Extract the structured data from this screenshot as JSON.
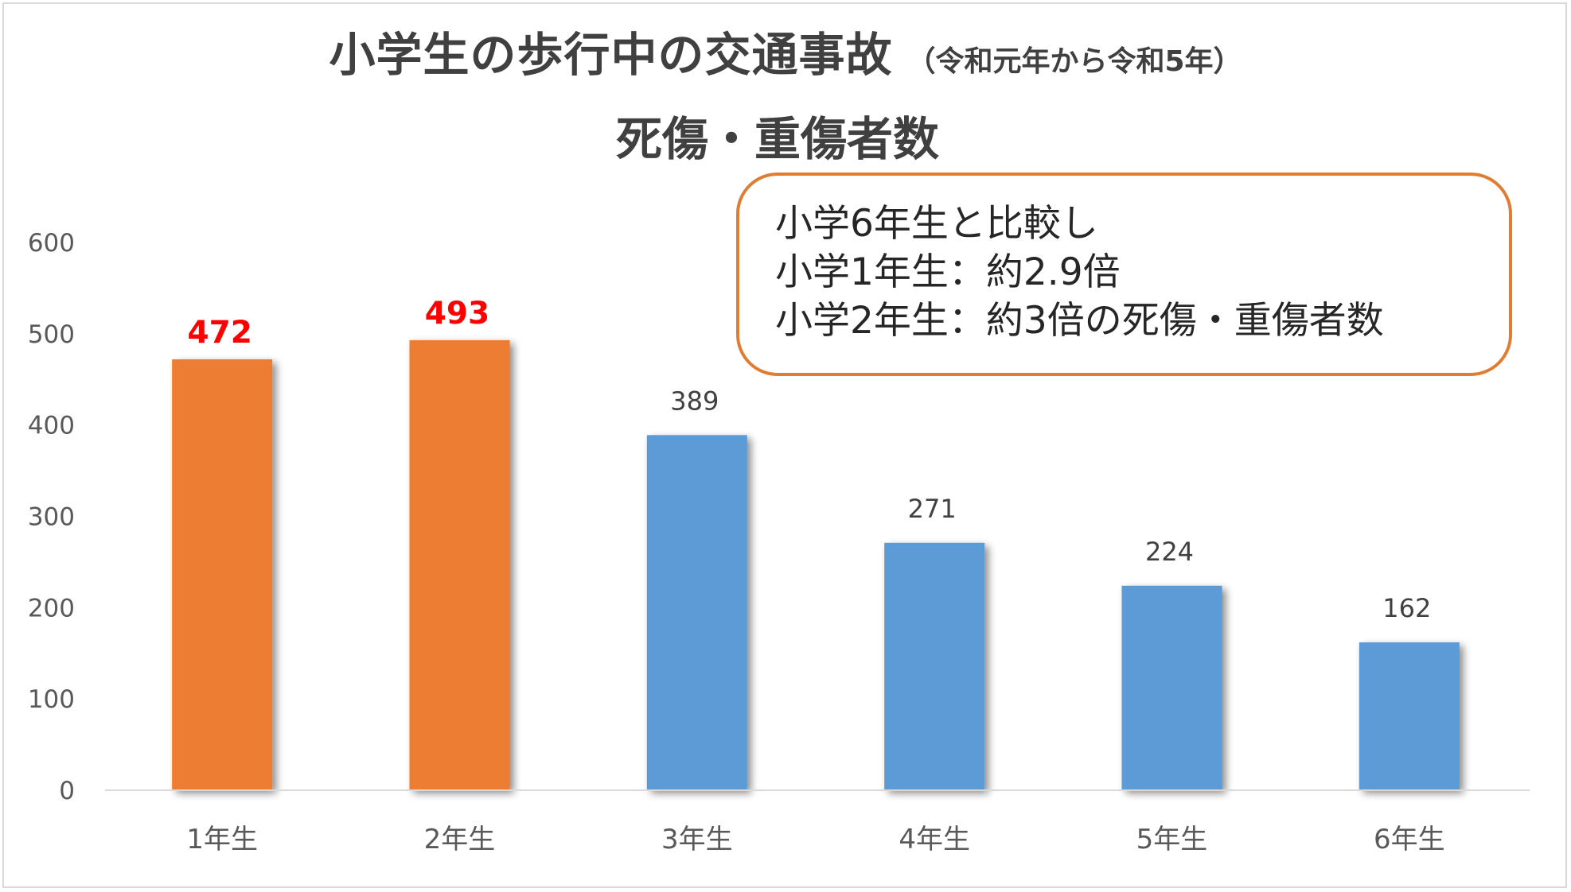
{
  "chart_data": {
    "type": "bar",
    "title": "小学生の歩行中の交通事故",
    "title_note": "（令和元年から令和5年）",
    "subtitle": "死傷・重傷者数",
    "categories": [
      "1年生",
      "2年生",
      "3年生",
      "4年生",
      "5年生",
      "6年生"
    ],
    "values": [
      472,
      493,
      389,
      271,
      224,
      162
    ],
    "data_labels": [
      "472",
      "493",
      "389",
      "271",
      "224",
      "162"
    ],
    "bar_colors": [
      "#ed7d31",
      "#ed7d31",
      "#5b9bd5",
      "#5b9bd5",
      "#5b9bd5",
      "#5b9bd5"
    ],
    "label_colors": [
      "#ff0000",
      "#ff0000",
      "#404040",
      "#404040",
      "#404040",
      "#404040"
    ],
    "label_bold": [
      true,
      true,
      false,
      false,
      false,
      false
    ],
    "ylim": [
      0,
      600
    ],
    "yticks": [
      0,
      100,
      200,
      300,
      400,
      500,
      600
    ],
    "ytick_labels": [
      "0",
      "100",
      "200",
      "300",
      "400",
      "500",
      "600"
    ],
    "xlabel": "",
    "ylabel": "",
    "grid": false,
    "legend": "none",
    "annotation": {
      "lines": [
        "小学6年生と比較し",
        "小学1年生：約2.9倍",
        "小学2年生：約3倍の死傷・重傷者数"
      ],
      "border_color": "#e07d33"
    }
  }
}
